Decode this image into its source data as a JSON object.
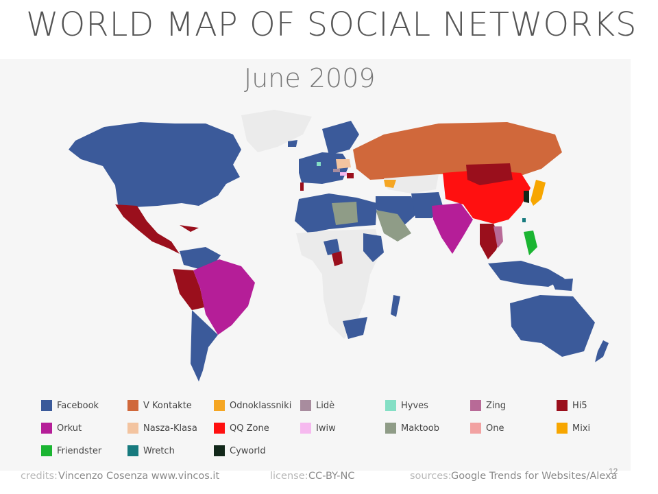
{
  "title": "WORLD MAP OF SOCIAL NETWORKS",
  "subtitle": "June 2009",
  "colors": {
    "Facebook": "#3b5a9a",
    "V Kontakte": "#d0683b",
    "Odnoklassniki": "#f5a623",
    "Lidè": "#a88c9e",
    "Hyves": "#84dfc5",
    "Zing": "#b86a97",
    "Hi5": "#9a0f1c",
    "Orkut": "#b51e98",
    "Nasza-Klasa": "#f3c4a0",
    "QQ Zone": "#ff1010",
    "Iwiw": "#f6b9ef",
    "Maktoob": "#8f9c87",
    "One": "#f2a2a2",
    "Mixi": "#f7a600",
    "Friendster": "#1bb532",
    "Wretch": "#177a7e",
    "Cyworld": "#12281a",
    "no_data": "#ebebeb"
  },
  "legend": [
    {
      "label": "Facebook",
      "color": "#3b5a9a"
    },
    {
      "label": "V Kontakte",
      "color": "#d0683b"
    },
    {
      "label": "Odnoklassniki",
      "color": "#f5a623"
    },
    {
      "label": "Lidè",
      "color": "#a88c9e"
    },
    {
      "label": "Hyves",
      "color": "#84dfc5"
    },
    {
      "label": "Zing",
      "color": "#b86a97"
    },
    {
      "label": "Hi5",
      "color": "#9a0f1c"
    },
    {
      "label": "Orkut",
      "color": "#b51e98"
    },
    {
      "label": "Nasza-Klasa",
      "color": "#f3c4a0"
    },
    {
      "label": "QQ Zone",
      "color": "#ff1010"
    },
    {
      "label": "Iwiw",
      "color": "#f6b9ef"
    },
    {
      "label": "Maktoob",
      "color": "#8f9c87"
    },
    {
      "label": "One",
      "color": "#f2a2a2"
    },
    {
      "label": "Mixi",
      "color": "#f7a600"
    },
    {
      "label": "Friendster",
      "color": "#1bb532"
    },
    {
      "label": "Wretch",
      "color": "#177a7e"
    },
    {
      "label": "Cyworld",
      "color": "#12281a"
    }
  ],
  "credits": {
    "credits_label": "credits:",
    "credits_value": "Vincenzo Cosenza  www.vincos.it",
    "license_label": "license:",
    "license_value": "CC-BY-NC",
    "sources_label": "sources:",
    "sources_value": "Google Trends for Websites/Alexa"
  },
  "page_number": "12"
}
